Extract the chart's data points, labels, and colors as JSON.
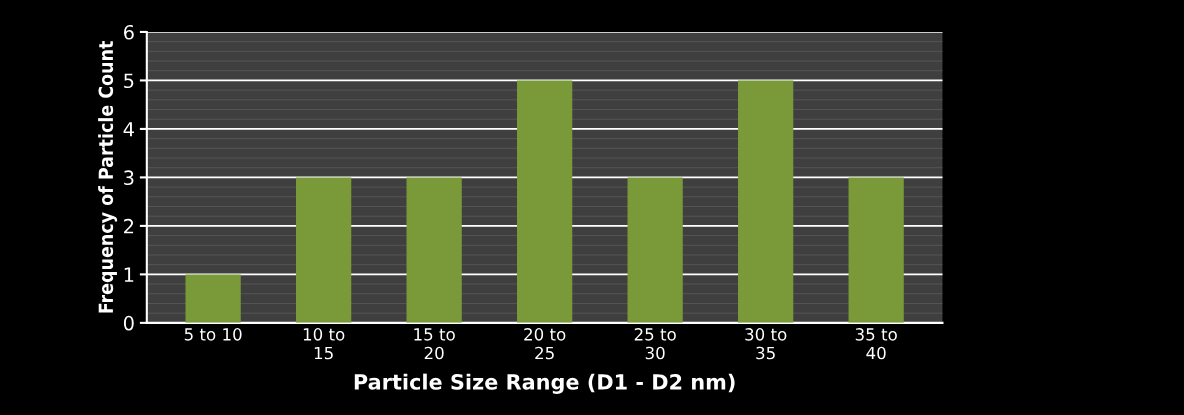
{
  "chart_data": {
    "type": "bar",
    "categories": [
      "5 to 10",
      "10 to 15",
      "15 to 20",
      "20 to 25",
      "25 to 30",
      "30 to 35",
      "35 to 40"
    ],
    "values": [
      1,
      3,
      3,
      5,
      3,
      5,
      3
    ],
    "color": "#7a9a3a",
    "xlabel": "Particle Size Range (D1 - D2 nm)",
    "ylabel": "Frequency of Particle Count",
    "ylim": [
      0,
      6
    ],
    "yticks": [
      0,
      1,
      2,
      3,
      4,
      5,
      6
    ],
    "grid": "y"
  }
}
